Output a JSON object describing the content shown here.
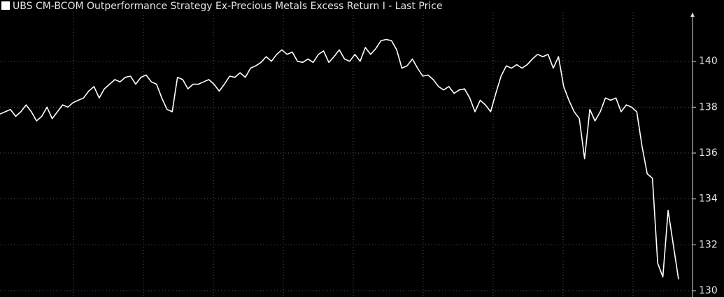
{
  "chart_data": {
    "type": "line",
    "title": "UBS CM-BCOM Outperformance Strategy Ex-Precious Metals Excess Return I - Last Price",
    "series": [
      {
        "name": "UBS CM-BCOM Outperformance Strategy Ex-Precious Metals Excess Return I - Last Price",
        "color": "#ffffff",
        "values": [
          137.7,
          137.8,
          137.9,
          137.6,
          137.8,
          138.1,
          137.8,
          137.4,
          137.6,
          138.0,
          137.5,
          137.8,
          138.1,
          138.0,
          138.2,
          138.3,
          138.4,
          138.7,
          138.9,
          138.4,
          138.8,
          139.0,
          139.2,
          139.1,
          139.3,
          139.35,
          139.0,
          139.3,
          139.4,
          139.1,
          139.0,
          138.4,
          137.9,
          137.8,
          139.3,
          139.2,
          138.8,
          139.0,
          139.0,
          139.1,
          139.2,
          139.0,
          138.7,
          139.0,
          139.35,
          139.3,
          139.5,
          139.3,
          139.7,
          139.8,
          139.95,
          140.2,
          140.0,
          140.3,
          140.5,
          140.3,
          140.4,
          140.0,
          139.95,
          140.1,
          139.95,
          140.3,
          140.45,
          139.95,
          140.2,
          140.5,
          140.1,
          140.0,
          140.3,
          140.0,
          140.6,
          140.3,
          140.55,
          140.9,
          140.95,
          140.9,
          140.5,
          139.7,
          139.8,
          140.1,
          139.7,
          139.35,
          139.4,
          139.2,
          138.9,
          138.75,
          138.9,
          138.6,
          138.75,
          138.8,
          138.4,
          137.8,
          138.3,
          138.1,
          137.8,
          138.6,
          139.35,
          139.8,
          139.7,
          139.85,
          139.7,
          139.85,
          140.1,
          140.3,
          140.2,
          140.3,
          139.7,
          140.2,
          138.9,
          138.3,
          137.8,
          137.5,
          135.75,
          137.9,
          137.4,
          137.8,
          138.4,
          138.3,
          138.4,
          137.8,
          138.1,
          138.0,
          137.8,
          136.3,
          135.1,
          134.9,
          131.2,
          130.6,
          133.5,
          132.0,
          130.5
        ]
      }
    ],
    "ylim": [
      130,
      142
    ],
    "yticks": [
      130,
      132,
      134,
      136,
      138,
      140
    ],
    "grid": true
  }
}
